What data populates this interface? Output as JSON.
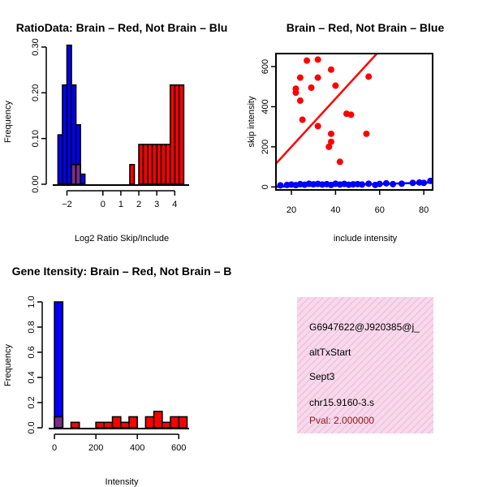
{
  "colors": {
    "brain": "#ff0000",
    "not_brain": "#0000ff",
    "overlap": "#7b2d8b",
    "info_bg": "#f7d9ec",
    "info_hatch": "#f0b7d8",
    "pval": "#8b1a1a"
  },
  "chart_data": [
    {
      "type": "histogram",
      "title": "RatioData: Brain – Red, Not Brain – Blu",
      "xlabel": "Log2 Ratio Skip/Include",
      "ylabel": "Frequency",
      "xlim": [
        -2.7,
        4.8
      ],
      "ylim": [
        0,
        0.3
      ],
      "xticks": [
        -2,
        0,
        1,
        2,
        3,
        4
      ],
      "xtick_labels": [
        "−2",
        "0",
        "1",
        "2",
        "3",
        "4"
      ],
      "yticks": [
        0.0,
        0.1,
        0.2,
        0.3
      ],
      "ytick_labels": [
        "0.00",
        "0.10",
        "0.20",
        "0.30"
      ],
      "series": [
        {
          "name": "Not Brain",
          "bins": [
            [
              -2.5,
              -2.25,
              0.108
            ],
            [
              -2.25,
              -2.0,
              0.217
            ],
            [
              -2.0,
              -1.75,
              0.304
            ],
            [
              -1.75,
              -1.5,
              0.217
            ],
            [
              -1.5,
              -1.25,
              0.13
            ],
            [
              -1.25,
              -1.0,
              0.022
            ]
          ]
        },
        {
          "name": "Brain",
          "bins": [
            [
              -1.75,
              -1.5,
              0.043
            ],
            [
              -1.5,
              -1.25,
              0.043
            ],
            [
              1.5,
              1.75,
              0.043
            ],
            [
              2.0,
              2.25,
              0.087
            ],
            [
              2.25,
              2.5,
              0.087
            ],
            [
              2.5,
              2.75,
              0.087
            ],
            [
              2.75,
              3.0,
              0.087
            ],
            [
              3.0,
              3.25,
              0.087
            ],
            [
              3.25,
              3.5,
              0.087
            ],
            [
              3.5,
              3.75,
              0.087
            ],
            [
              3.75,
              4.0,
              0.217
            ],
            [
              4.0,
              4.25,
              0.217
            ],
            [
              4.25,
              4.5,
              0.217
            ]
          ]
        }
      ]
    },
    {
      "type": "scatter",
      "title": "Brain – Red, Not Brain – Blue",
      "xlabel": "include intensity",
      "ylabel": "skip intensity",
      "xlim": [
        13,
        84
      ],
      "ylim": [
        -15,
        665
      ],
      "xticks": [
        20,
        40,
        60,
        80
      ],
      "yticks": [
        0,
        200,
        400,
        600
      ],
      "series": [
        {
          "name": "Brain",
          "points": [
            [
              27,
              630
            ],
            [
              32,
              635
            ],
            [
              22,
              490
            ],
            [
              22,
              470
            ],
            [
              24,
              430
            ],
            [
              29,
              495
            ],
            [
              32,
              545
            ],
            [
              24,
              545
            ],
            [
              38,
              585
            ],
            [
              40,
              505
            ],
            [
              55,
              550
            ],
            [
              25,
              335
            ],
            [
              32,
              303
            ],
            [
              45,
              365
            ],
            [
              47,
              360
            ],
            [
              38,
              265
            ],
            [
              38,
              225
            ],
            [
              37,
              200
            ],
            [
              42,
              125
            ],
            [
              54,
              265
            ]
          ],
          "fit": {
            "intercept": -40,
            "slope": 12.0
          }
        },
        {
          "name": "Not Brain",
          "points": [
            [
              15,
              8
            ],
            [
              18,
              10
            ],
            [
              20,
              12
            ],
            [
              22,
              9
            ],
            [
              24,
              14
            ],
            [
              26,
              11
            ],
            [
              28,
              16
            ],
            [
              30,
              13
            ],
            [
              32,
              15
            ],
            [
              34,
              12
            ],
            [
              36,
              14
            ],
            [
              38,
              10
            ],
            [
              40,
              16
            ],
            [
              42,
              12
            ],
            [
              44,
              15
            ],
            [
              46,
              11
            ],
            [
              48,
              13
            ],
            [
              50,
              14
            ],
            [
              52,
              12
            ],
            [
              55,
              16
            ],
            [
              58,
              10
            ],
            [
              60,
              15
            ],
            [
              63,
              18
            ],
            [
              66,
              14
            ],
            [
              70,
              16
            ],
            [
              75,
              20
            ],
            [
              78,
              22
            ],
            [
              80,
              20
            ],
            [
              83,
              30
            ]
          ],
          "fit": {
            "intercept": -3,
            "slope": 0.3
          }
        }
      ]
    },
    {
      "type": "histogram",
      "title": "Gene Itensity: Brain – Red, Not Brain – B",
      "xlabel": "Intensity",
      "ylabel": "Frequency",
      "xlim": [
        -20,
        650
      ],
      "ylim": [
        0,
        1.0
      ],
      "xticks": [
        0,
        200,
        400,
        600
      ],
      "xtick_labels": [
        "0",
        "200",
        "400",
        "600"
      ],
      "yticks": [
        0.0,
        0.2,
        0.4,
        0.6,
        0.8,
        1.0
      ],
      "ytick_labels": [
        "0.0",
        "0.2",
        "0.4",
        "0.6",
        "0.8",
        "1.0"
      ],
      "series": [
        {
          "name": "Not Brain",
          "bins": [
            [
              0,
              40,
              1.0
            ]
          ]
        },
        {
          "name": "Brain",
          "bins": [
            [
              0,
              40,
              0.087
            ],
            [
              40,
              80,
              0.0
            ],
            [
              80,
              120,
              0.043
            ],
            [
              120,
              160,
              0.0
            ],
            [
              160,
              200,
              0.0
            ],
            [
              200,
              240,
              0.043
            ],
            [
              240,
              280,
              0.043
            ],
            [
              280,
              320,
              0.087
            ],
            [
              320,
              360,
              0.043
            ],
            [
              360,
              400,
              0.087
            ],
            [
              400,
              440,
              0.0
            ],
            [
              440,
              480,
              0.087
            ],
            [
              480,
              520,
              0.13
            ],
            [
              520,
              560,
              0.043
            ],
            [
              560,
              600,
              0.087
            ],
            [
              600,
              640,
              0.087
            ],
            [
              640,
              650,
              0.0
            ]
          ]
        }
      ]
    }
  ],
  "info_box": {
    "lines": [
      "G6947622@J920385@j_",
      "altTxStart",
      "Sept3",
      "chr15.9160-3.s"
    ],
    "pval": "Pval: 2.000000"
  }
}
